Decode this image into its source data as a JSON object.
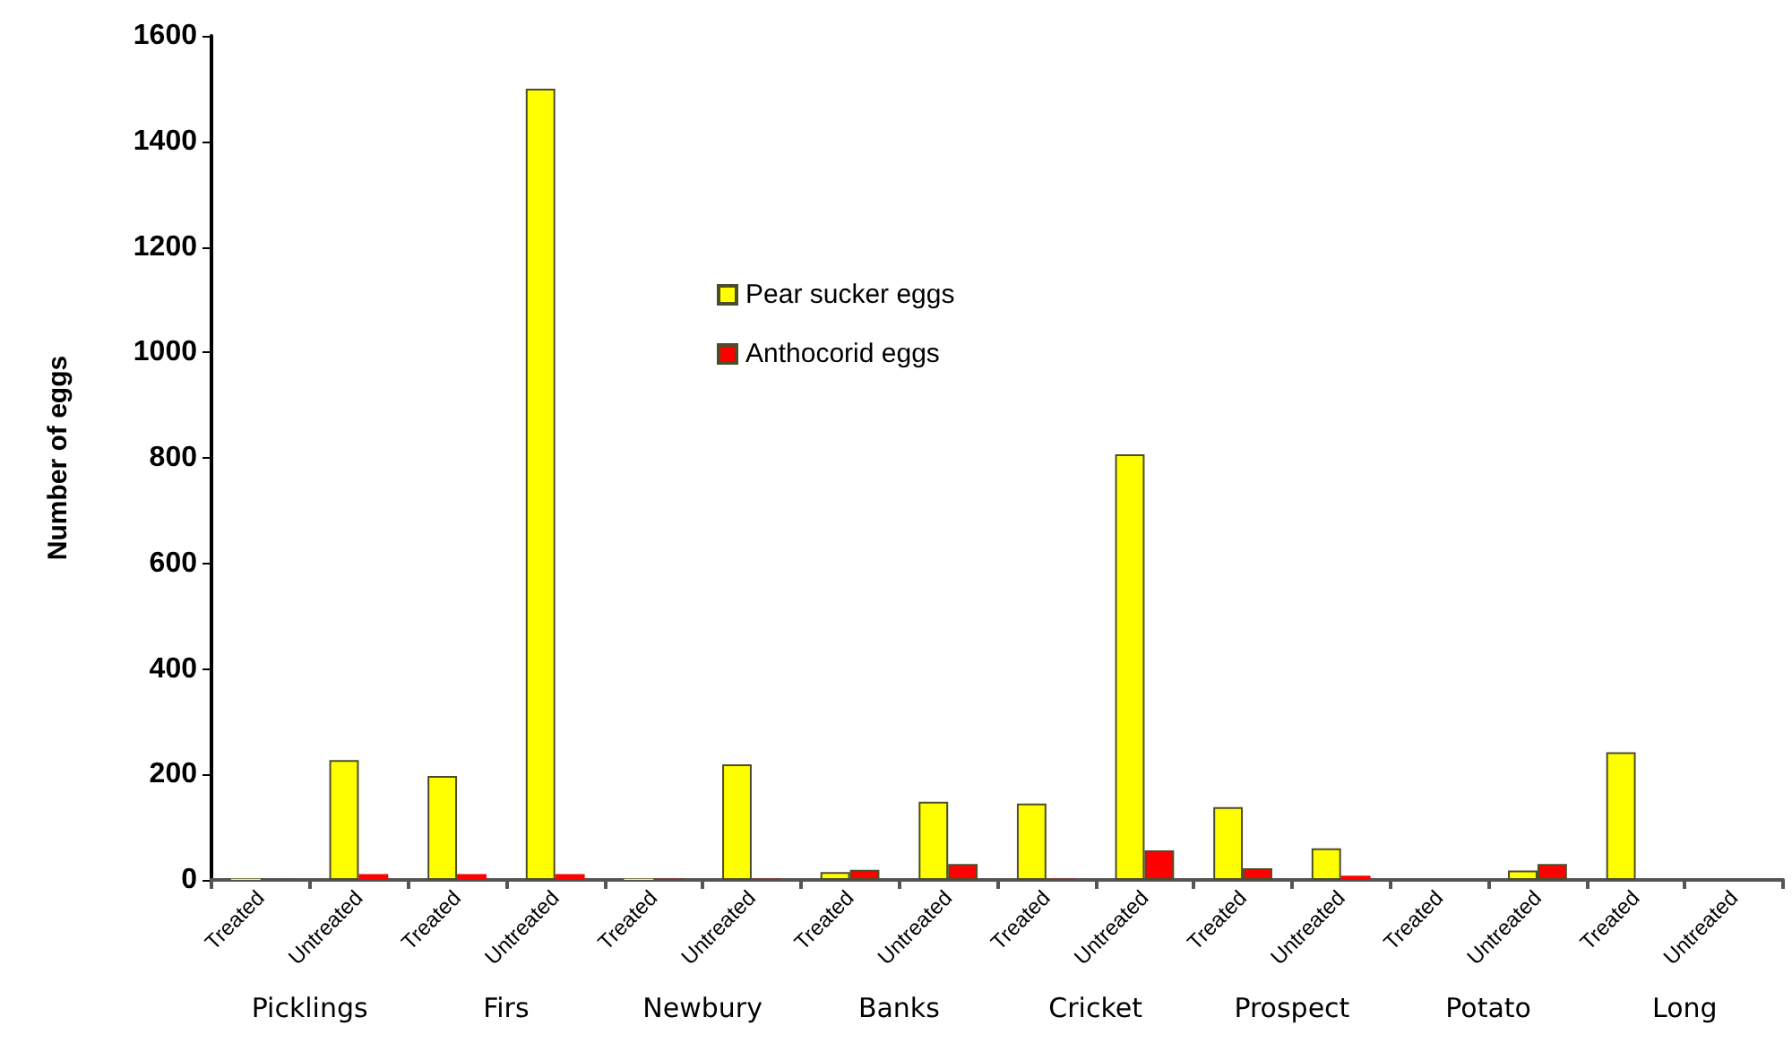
{
  "chart_data": {
    "type": "bar",
    "ylabel": "Number of eggs",
    "categories": [
      "Treated",
      "Untreated",
      "Treated",
      "Untreated",
      "Treated",
      "Untreated",
      "Treated",
      "Untreated",
      "Treated",
      "Untreated",
      "Treated",
      "Untreated",
      "Treated",
      "Untreated",
      "Treated",
      "Untreated"
    ],
    "annotations": [
      "Picklings",
      "Firs",
      "Newbury",
      "Banks",
      "Cricket",
      "Prospect",
      "Potato",
      "Long"
    ],
    "series": [
      {
        "name": "Pear sucker eggs",
        "color": "#ffff00",
        "values": [
          2,
          227,
          197,
          1500,
          2,
          219,
          15,
          148,
          145,
          807,
          138,
          60,
          0,
          18,
          242,
          0
        ]
      },
      {
        "name": "Anthocorid eggs",
        "color": "#ff0000",
        "values": [
          1,
          11,
          11,
          11,
          2,
          2,
          19,
          30,
          2,
          56,
          22,
          8,
          0,
          30,
          0,
          0
        ]
      }
    ],
    "ylim": [
      0,
      1600
    ],
    "yticks": [
      0,
      200,
      400,
      600,
      800,
      1000,
      1200,
      1400,
      1600
    ],
    "grid": false,
    "legend": "top"
  }
}
